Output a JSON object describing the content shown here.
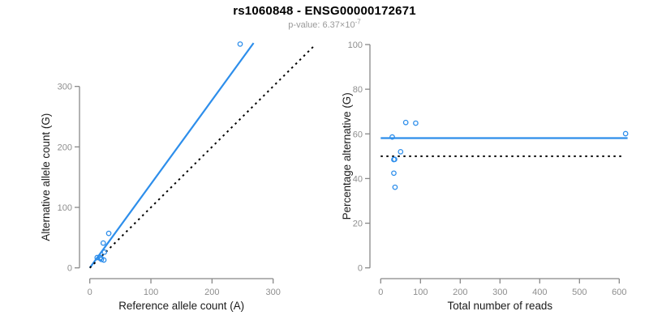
{
  "page": {
    "title": "rs1060848 - ENSG00000172671",
    "subtitle_prefix": "p-value: 6.37×10",
    "subtitle_exponent": "-7"
  },
  "colors": {
    "accent_blue": "#2D8EEB",
    "line_black": "#000000",
    "axis_gray": "#888888",
    "tick_label_gray": "#8E8E8E",
    "axis_title_color": "#1A1A1A",
    "subtitle_gray": "#999999",
    "background": "#FFFFFF"
  },
  "chart_data": [
    {
      "type": "scatter",
      "id": "allele-count-scatter",
      "xlabel": "Reference allele count (A)",
      "ylabel": "Alternative allele count (G)",
      "xticks": [
        0,
        100,
        200,
        300
      ],
      "yticks": [
        0,
        100,
        200,
        300
      ],
      "xlim": [
        0,
        370
      ],
      "ylim": [
        0,
        372
      ],
      "grid": false,
      "legend": null,
      "points": [
        [
          246,
          370
        ],
        [
          31,
          57
        ],
        [
          22,
          41
        ],
        [
          24,
          26
        ],
        [
          12,
          17
        ],
        [
          17,
          16
        ],
        [
          18,
          17
        ],
        [
          19,
          14
        ],
        [
          23,
          13
        ]
      ],
      "lines": [
        {
          "name": "fit-line",
          "style": "solid",
          "color_key": "accent_blue",
          "width": 2.2,
          "from": [
            0,
            0
          ],
          "to": [
            268,
            371.7
          ]
        },
        {
          "name": "identity-line",
          "style": "dotted",
          "color_key": "line_black",
          "width": 2,
          "from": [
            0,
            0
          ],
          "to": [
            368,
            368
          ]
        }
      ]
    },
    {
      "type": "scatter",
      "id": "percentage-scatter",
      "xlabel": "Total number of reads",
      "ylabel": "Percentage alternative (G)",
      "xticks": [
        0,
        100,
        200,
        300,
        400,
        500,
        600
      ],
      "yticks": [
        0,
        20,
        40,
        60,
        80,
        100
      ],
      "xlim": [
        0,
        621
      ],
      "ylim": [
        0,
        100
      ],
      "grid": false,
      "legend": null,
      "points": [
        [
          616,
          60.1
        ],
        [
          88,
          64.8
        ],
        [
          63,
          65.1
        ],
        [
          50,
          52.0
        ],
        [
          29,
          58.6
        ],
        [
          33,
          48.5
        ],
        [
          35,
          48.6
        ],
        [
          33,
          42.4
        ],
        [
          36,
          36.1
        ]
      ],
      "lines": [
        {
          "name": "mean-percentage-line",
          "style": "solid",
          "color_key": "accent_blue",
          "width": 2.2,
          "from": [
            0,
            58.1
          ],
          "to": [
            621,
            58.1
          ]
        },
        {
          "name": "fifty-percent-line",
          "style": "dotted",
          "color_key": "line_black",
          "width": 2,
          "from": [
            0,
            50
          ],
          "to": [
            607,
            50
          ]
        }
      ]
    }
  ]
}
